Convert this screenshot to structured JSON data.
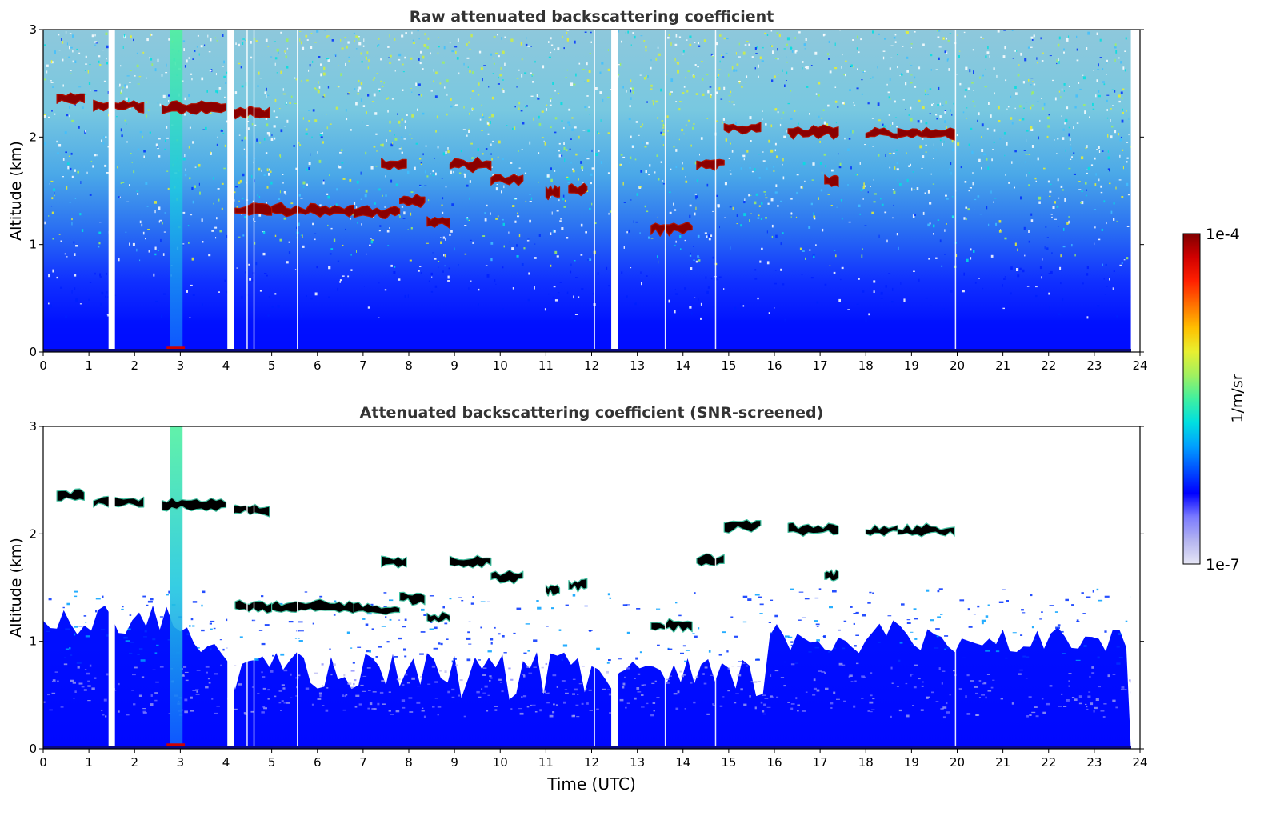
{
  "colors": {
    "colormap": [
      "#e6e6f5",
      "#b4b4f0",
      "#7a7aff",
      "#0000ff",
      "#0050ff",
      "#00a0ff",
      "#00e0e0",
      "#40f0a0",
      "#a0f060",
      "#e8f030",
      "#ffc000",
      "#ff7000",
      "#ff2000",
      "#d00000",
      "#800000"
    ],
    "cloud_raw": "#8b0000",
    "cloud_screened": "#000000",
    "background": "#ffffff"
  },
  "colorbar": {
    "label": "1/m/sr",
    "max_label": "1e-4",
    "min_label": "1e-7",
    "range": [
      1e-07,
      0.0001
    ],
    "scale": "log"
  },
  "xlabel": "Time (UTC)",
  "x_ticks": [
    "0",
    "1",
    "2",
    "3",
    "4",
    "5",
    "6",
    "7",
    "8",
    "9",
    "10",
    "11",
    "12",
    "13",
    "14",
    "15",
    "16",
    "17",
    "18",
    "19",
    "20",
    "21",
    "22",
    "23",
    "24"
  ],
  "y_ticks": [
    "0",
    "1",
    "2",
    "3"
  ],
  "chart_data": [
    {
      "type": "heatmap",
      "title": "Raw attenuated backscattering coefficient",
      "xlabel": "",
      "ylabel": "Altitude (km)",
      "xlim": [
        0,
        24
      ],
      "ylim": [
        0,
        3
      ],
      "grid": false,
      "gaps_utc": [
        1.5,
        4.1,
        12.5
      ],
      "cloud_layers": [
        {
          "t_start": 0.3,
          "t_end": 0.9,
          "alt_km": 2.35
        },
        {
          "t_start": 1.1,
          "t_end": 2.2,
          "alt_km": 2.29
        },
        {
          "t_start": 2.6,
          "t_end": 4.0,
          "alt_km": 2.27
        },
        {
          "t_start": 4.1,
          "t_end": 4.95,
          "alt_km": 2.23
        },
        {
          "t_start": 4.2,
          "t_end": 5.0,
          "alt_km": 1.32
        },
        {
          "t_start": 5.0,
          "t_end": 6.8,
          "alt_km": 1.32
        },
        {
          "t_start": 6.8,
          "t_end": 7.8,
          "alt_km": 1.3
        },
        {
          "t_start": 7.8,
          "t_end": 8.35,
          "alt_km": 1.4
        },
        {
          "t_start": 8.4,
          "t_end": 8.9,
          "alt_km": 1.22
        },
        {
          "t_start": 7.4,
          "t_end": 7.95,
          "alt_km": 1.74
        },
        {
          "t_start": 8.9,
          "t_end": 9.8,
          "alt_km": 1.74
        },
        {
          "t_start": 9.8,
          "t_end": 10.5,
          "alt_km": 1.6
        },
        {
          "t_start": 11.0,
          "t_end": 11.3,
          "alt_km": 1.48
        },
        {
          "t_start": 11.5,
          "t_end": 11.9,
          "alt_km": 1.52
        },
        {
          "t_start": 13.3,
          "t_end": 14.2,
          "alt_km": 1.15
        },
        {
          "t_start": 14.3,
          "t_end": 14.9,
          "alt_km": 1.75
        },
        {
          "t_start": 14.9,
          "t_end": 15.7,
          "alt_km": 2.08
        },
        {
          "t_start": 16.3,
          "t_end": 17.4,
          "alt_km": 2.05
        },
        {
          "t_start": 18.0,
          "t_end": 18.7,
          "alt_km": 2.03
        },
        {
          "t_start": 18.7,
          "t_end": 19.95,
          "alt_km": 2.03
        },
        {
          "t_start": 17.1,
          "t_end": 17.4,
          "alt_km": 1.6
        }
      ]
    },
    {
      "type": "heatmap",
      "title": "Attenuated backscattering coefficient (SNR-screened)",
      "xlabel": "Time (UTC)",
      "ylabel": "Altitude (km)",
      "xlim": [
        0,
        24
      ],
      "ylim": [
        0,
        3
      ],
      "grid": false,
      "gaps_utc": [
        1.5,
        4.1,
        12.5
      ],
      "cloud_layers": [
        {
          "t_start": 0.3,
          "t_end": 0.9,
          "alt_km": 2.35
        },
        {
          "t_start": 1.1,
          "t_end": 2.2,
          "alt_km": 2.29
        },
        {
          "t_start": 2.6,
          "t_end": 4.0,
          "alt_km": 2.27
        },
        {
          "t_start": 4.1,
          "t_end": 4.95,
          "alt_km": 2.23
        },
        {
          "t_start": 4.2,
          "t_end": 5.0,
          "alt_km": 1.32
        },
        {
          "t_start": 5.0,
          "t_end": 6.8,
          "alt_km": 1.32
        },
        {
          "t_start": 6.8,
          "t_end": 7.8,
          "alt_km": 1.3
        },
        {
          "t_start": 7.8,
          "t_end": 8.35,
          "alt_km": 1.4
        },
        {
          "t_start": 8.4,
          "t_end": 8.9,
          "alt_km": 1.22
        },
        {
          "t_start": 7.4,
          "t_end": 7.95,
          "alt_km": 1.74
        },
        {
          "t_start": 8.9,
          "t_end": 9.8,
          "alt_km": 1.74
        },
        {
          "t_start": 9.8,
          "t_end": 10.5,
          "alt_km": 1.6
        },
        {
          "t_start": 11.0,
          "t_end": 11.3,
          "alt_km": 1.48
        },
        {
          "t_start": 11.5,
          "t_end": 11.9,
          "alt_km": 1.52
        },
        {
          "t_start": 13.3,
          "t_end": 14.2,
          "alt_km": 1.15
        },
        {
          "t_start": 14.3,
          "t_end": 14.9,
          "alt_km": 1.75
        },
        {
          "t_start": 14.9,
          "t_end": 15.7,
          "alt_km": 2.08
        },
        {
          "t_start": 16.3,
          "t_end": 17.4,
          "alt_km": 2.05
        },
        {
          "t_start": 18.0,
          "t_end": 18.7,
          "alt_km": 2.03
        },
        {
          "t_start": 18.7,
          "t_end": 19.95,
          "alt_km": 2.03
        },
        {
          "t_start": 17.1,
          "t_end": 17.4,
          "alt_km": 1.6
        }
      ]
    }
  ]
}
